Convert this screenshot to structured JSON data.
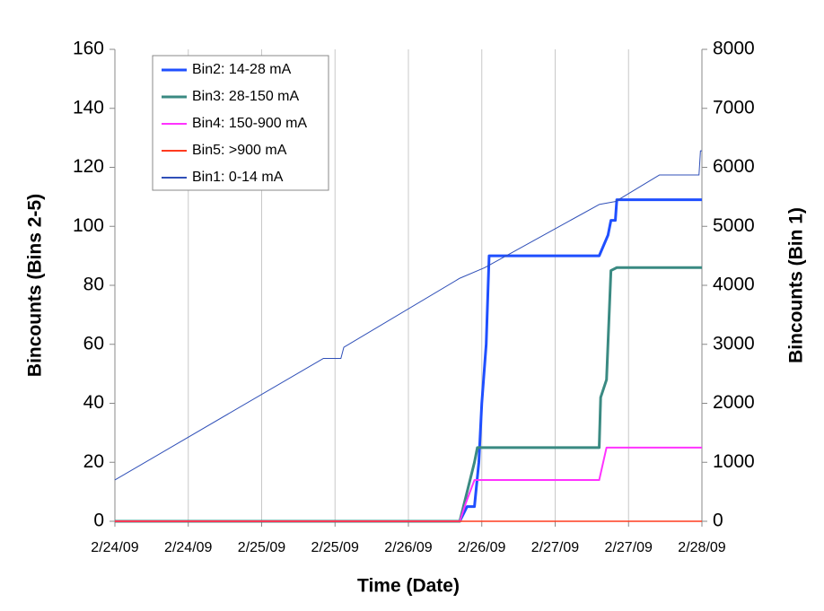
{
  "chart_data": {
    "type": "line",
    "xlabel": "Time (Date)",
    "ylabel": "Bincounts (Bins 2-5)",
    "y2label": "Bincounts (Bin 1)",
    "xlim": [
      0,
      4
    ],
    "xticks": [
      {
        "value": 0,
        "label": "2/24/09"
      },
      {
        "value": 0.5,
        "label": "2/24/09"
      },
      {
        "value": 1,
        "label": "2/25/09"
      },
      {
        "value": 1.5,
        "label": "2/25/09"
      },
      {
        "value": 2,
        "label": "2/26/09"
      },
      {
        "value": 2.5,
        "label": "2/26/09"
      },
      {
        "value": 3,
        "label": "2/27/09"
      },
      {
        "value": 3.5,
        "label": "2/27/09"
      },
      {
        "value": 4,
        "label": "2/28/09"
      }
    ],
    "ylim": [
      0,
      160
    ],
    "yticks": [
      0,
      20,
      40,
      60,
      80,
      100,
      120,
      140,
      160
    ],
    "y2lim": [
      0,
      8000
    ],
    "y2ticks": [
      0,
      1000,
      2000,
      3000,
      4000,
      5000,
      6000,
      7000,
      8000
    ],
    "grid": true,
    "legend": "upper left",
    "series": [
      {
        "name": "Bin2: 14-28 mA",
        "color": "#1f4fff",
        "linewidth": 3,
        "x": [
          0,
          2.35,
          2.4,
          2.45,
          2.48,
          2.5,
          2.53,
          2.55,
          3.3,
          3.36,
          3.38,
          3.41,
          3.42,
          4.0
        ],
        "values": [
          0,
          0,
          5,
          5,
          20,
          40,
          60,
          90,
          90,
          97,
          102,
          102,
          109,
          109
        ]
      },
      {
        "name": "Bin3: 28-150 mA",
        "color": "#3a8a82",
        "linewidth": 3,
        "x": [
          0,
          2.35,
          2.45,
          2.47,
          3.3,
          3.31,
          3.35,
          3.38,
          3.42,
          4.0
        ],
        "values": [
          0,
          0,
          20,
          25,
          25,
          42,
          48,
          85,
          86,
          86
        ]
      },
      {
        "name": "Bin4: 150-900 mA",
        "color": "#ff33ff",
        "linewidth": 2,
        "x": [
          0,
          2.35,
          2.39,
          2.45,
          3.3,
          3.35,
          4.0
        ],
        "values": [
          0,
          0,
          6,
          14,
          14,
          25,
          25
        ]
      },
      {
        "name": "Bin5: >900 mA",
        "color": "#ff3b1f",
        "linewidth": 1.5,
        "x": [
          0,
          4.0
        ],
        "values": [
          0,
          0
        ]
      },
      {
        "name": "Bin1: 0-14 mA",
        "color": "#3050b8",
        "linewidth": 1,
        "axis": "y2",
        "x": [
          0,
          1.42,
          1.54,
          1.56,
          2.35,
          2.52,
          3.3,
          3.41,
          3.71,
          3.98,
          3.99,
          4.0
        ],
        "values": [
          700,
          2760,
          2760,
          2950,
          4120,
          4300,
          5370,
          5420,
          5870,
          5870,
          6280,
          6280
        ]
      }
    ]
  }
}
